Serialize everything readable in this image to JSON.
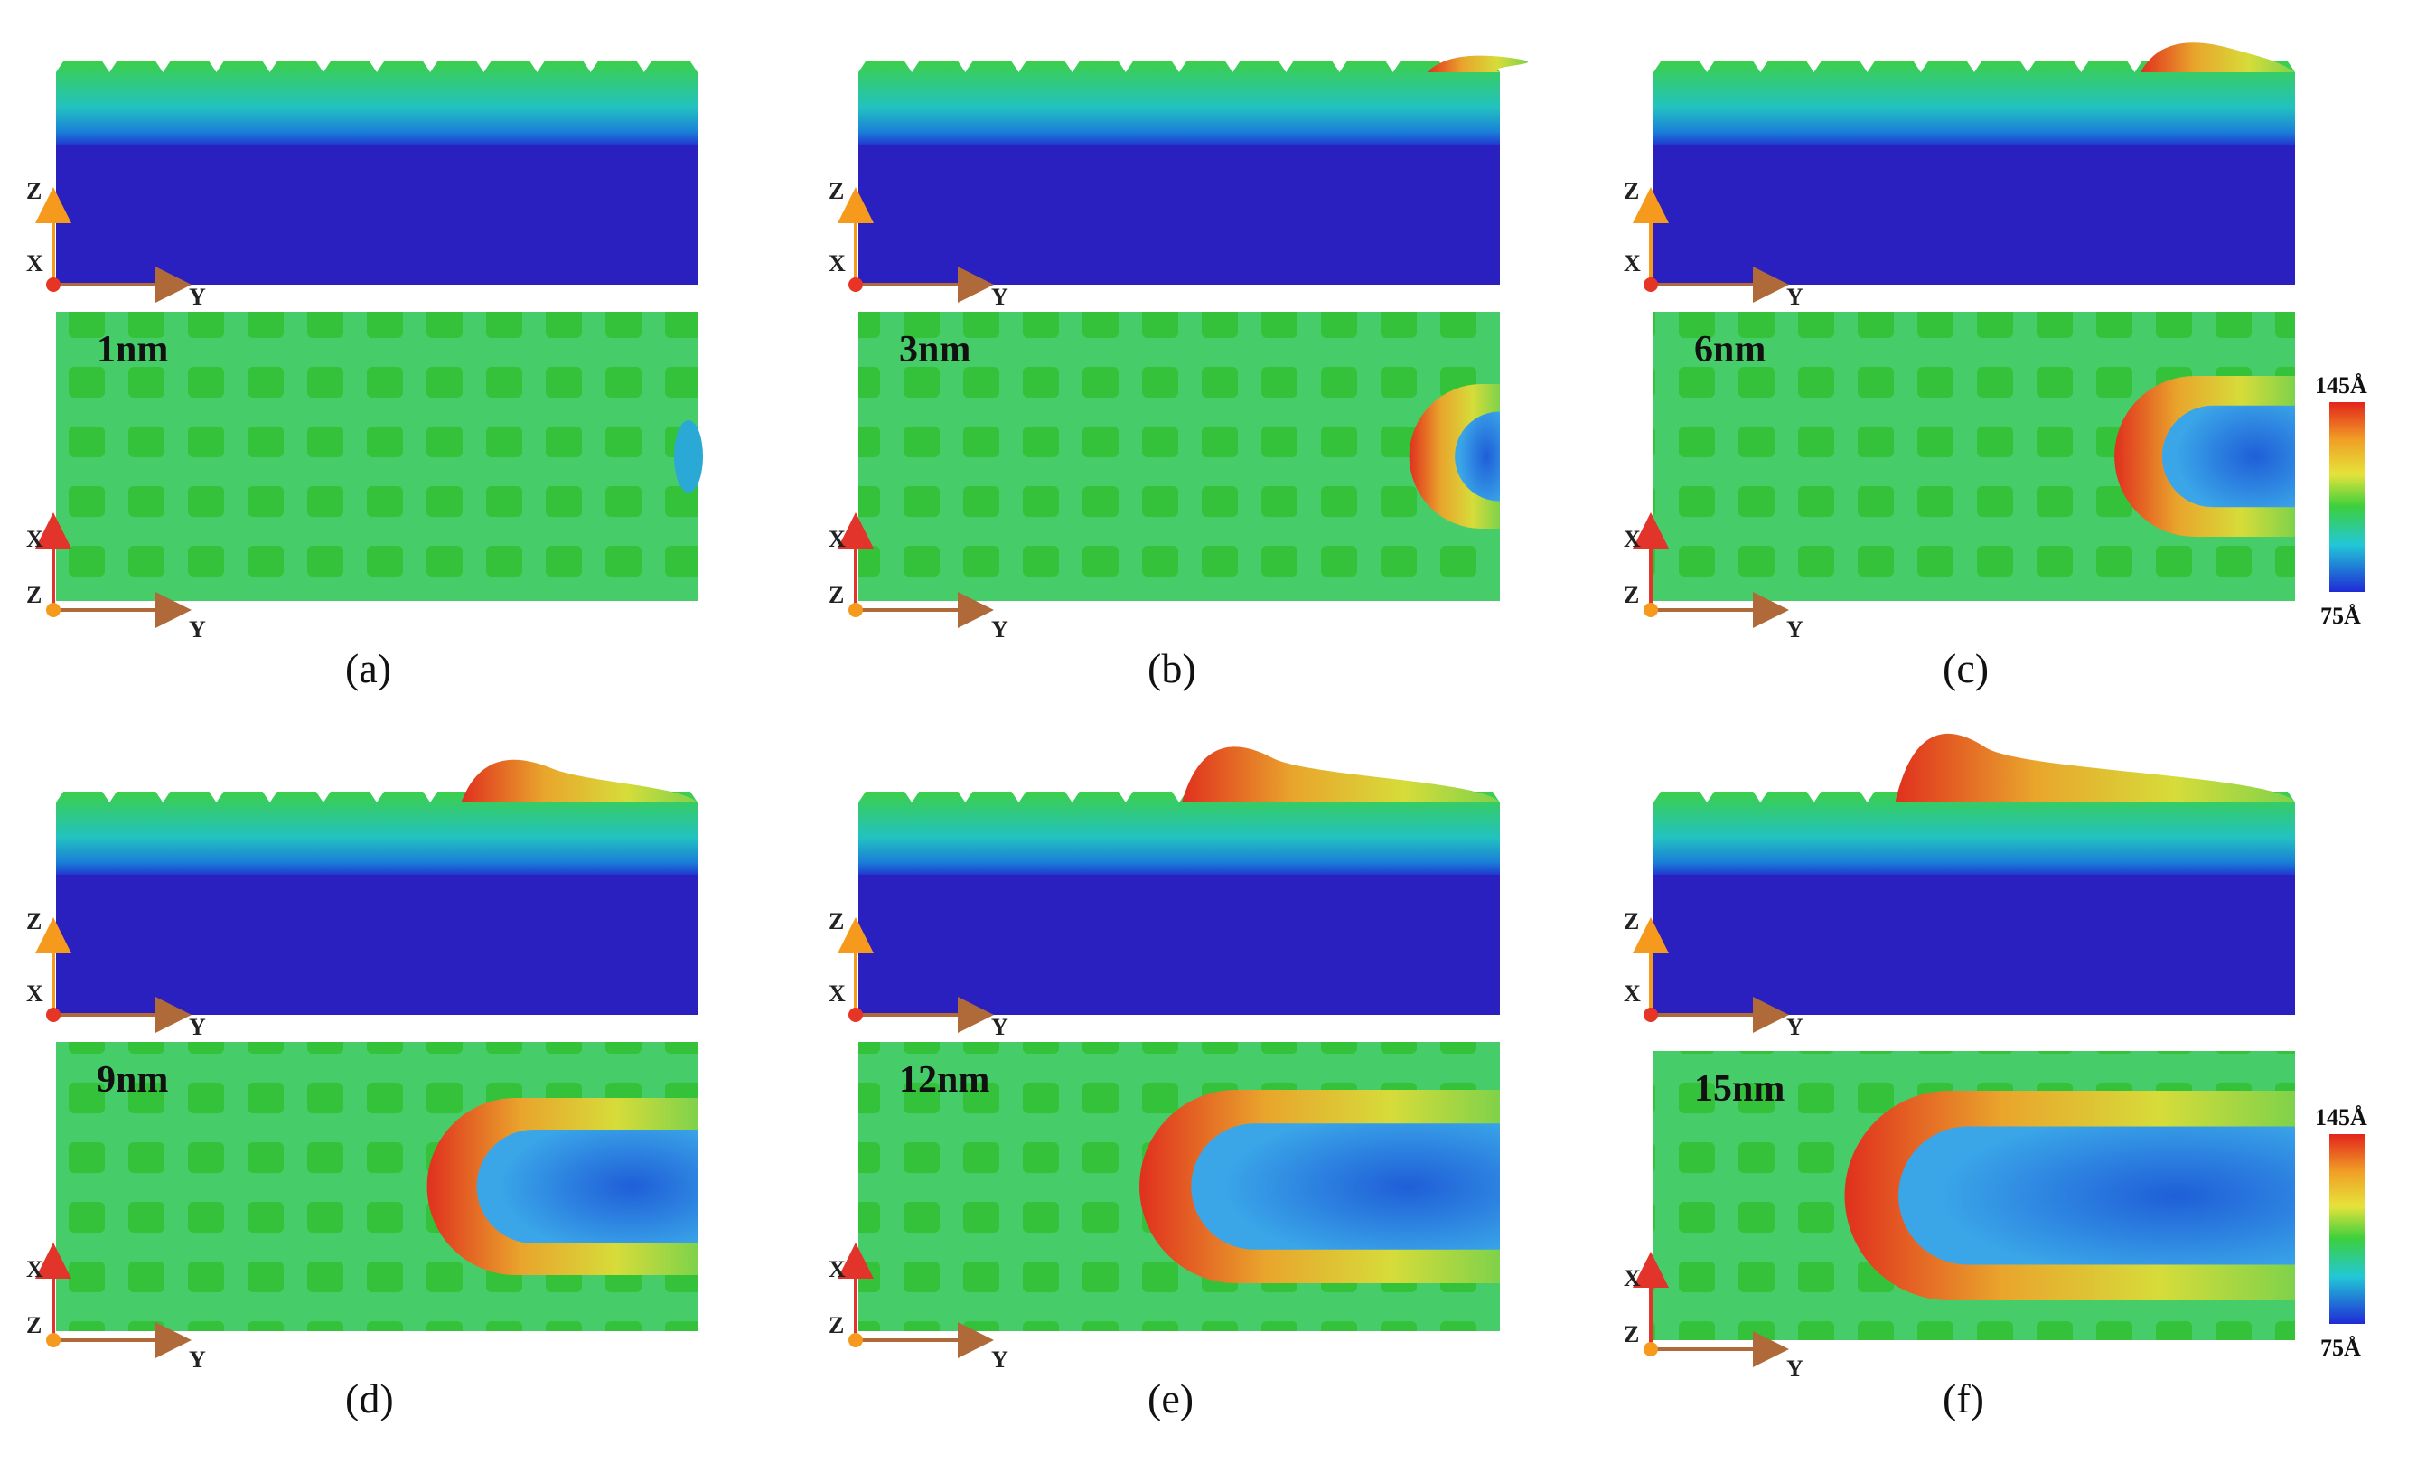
{
  "panels": [
    {
      "label": "(a)",
      "depth": "1nm",
      "groove_fraction": 0.0
    },
    {
      "label": "(b)",
      "depth": "3nm",
      "groove_fraction": 0.1
    },
    {
      "label": "(c)",
      "depth": "6nm",
      "groove_fraction": 0.25
    },
    {
      "label": "(d)",
      "depth": "9nm",
      "groove_fraction": 0.4
    },
    {
      "label": "(e)",
      "depth": "12nm",
      "groove_fraction": 0.55
    },
    {
      "label": "(f)",
      "depth": "15nm",
      "groove_fraction": 0.7
    }
  ],
  "axes": {
    "side_view": {
      "vertical": "Z",
      "origin": "X",
      "horizontal": "Y"
    },
    "top_view": {
      "vertical": "X",
      "origin": "Z",
      "horizontal": "Y"
    }
  },
  "colorbar": {
    "max_label": "145Å",
    "min_label": "75Å"
  },
  "colors": {
    "substrate": "#2a1fbf",
    "surface": "#3cc43c",
    "groove": "#2f7fe0",
    "pileup_mid": "#e0d63a",
    "pileup_high": "#e0301e",
    "axis_vertical": "#f59a1c",
    "axis_vertical_top": "#e2342a",
    "axis_horizontal": "#b06a3a",
    "origin_dot": "#e63525"
  }
}
